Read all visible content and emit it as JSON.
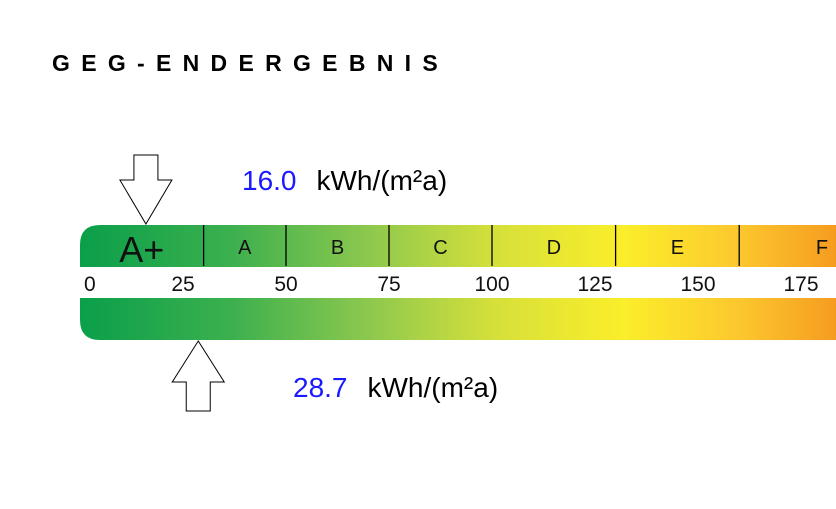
{
  "title": "GEG-ENDERGEBNIS",
  "chart_data": {
    "type": "energy-efficiency-scale",
    "title": "GEG-ENDERGEBNIS",
    "unit": "kWh/(m²a)",
    "xlim": [
      0,
      184
    ],
    "ticks": [
      0,
      25,
      50,
      75,
      100,
      125,
      150,
      175
    ],
    "classes": [
      {
        "label": "A+",
        "from": 0,
        "to": 30
      },
      {
        "label": "A",
        "from": 30,
        "to": 50
      },
      {
        "label": "B",
        "from": 50,
        "to": 75
      },
      {
        "label": "C",
        "from": 75,
        "to": 100
      },
      {
        "label": "D",
        "from": 100,
        "to": 130
      },
      {
        "label": "E",
        "from": 130,
        "to": 160
      },
      {
        "label": "F",
        "from": 160,
        "to": 200
      }
    ],
    "highlighted_class": "A+",
    "top_marker": {
      "value": 16.0,
      "label": "16.0",
      "unit": "kWh/(m²a)"
    },
    "bottom_marker": {
      "value": 28.7,
      "label": "28.7",
      "unit": "kWh/(m²a)"
    },
    "colors": {
      "green": "#0a9f4a",
      "mid_green": "#5cb84e",
      "yellow": "#f9ec2a",
      "orange": "#f5a020",
      "value_text": "#1a1aff"
    }
  }
}
